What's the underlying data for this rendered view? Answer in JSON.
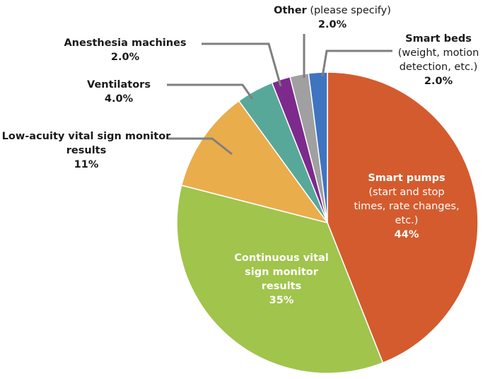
{
  "chart_data": {
    "type": "pie",
    "categories": [
      "Smart pumps",
      "Continuous vital sign monitor results",
      "Low-acuity vital sign monitor results",
      "Ventilators",
      "Anesthesia machines",
      "Other",
      "Smart beds"
    ],
    "notes": [
      "(start and stop times, rate changes, etc.)",
      null,
      null,
      null,
      null,
      "(please specify)",
      "(weight, motion detection, etc.)"
    ],
    "values": [
      44,
      35,
      11,
      4.0,
      2.0,
      2.0,
      2.0
    ],
    "value_labels": [
      "44%",
      "35%",
      "11%",
      "4.0%",
      "2.0%",
      "2.0%",
      "2.0%"
    ],
    "colors": [
      "#d45b2e",
      "#a1c44d",
      "#e9ad4c",
      "#58a89a",
      "#7d2a8c",
      "#a0a0a0",
      "#3f74c1"
    ]
  }
}
